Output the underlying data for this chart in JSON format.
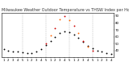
{
  "title": "Milwaukee Weather Outdoor Temperature vs THSW Index per Hour (24 Hours)",
  "title_fontsize": 3.5,
  "background_color": "#ffffff",
  "grid_color": "#999999",
  "tick_fontsize": 2.8,
  "hours": [
    1,
    2,
    3,
    4,
    5,
    6,
    7,
    8,
    9,
    10,
    11,
    12,
    13,
    14,
    15,
    16,
    17,
    18,
    19,
    20,
    21,
    22,
    23,
    24
  ],
  "temp": [
    42,
    40,
    39,
    38,
    37,
    36,
    36,
    38,
    42,
    48,
    54,
    60,
    65,
    68,
    67,
    63,
    58,
    52,
    47,
    43,
    40,
    38,
    36,
    35
  ],
  "thsw": [
    null,
    null,
    null,
    null,
    null,
    null,
    null,
    null,
    null,
    50,
    62,
    72,
    85,
    90,
    84,
    76,
    65,
    54,
    45,
    40,
    null,
    null,
    null,
    null
  ],
  "temp_color": "#000000",
  "thsw_color_main": "#ff6600",
  "thsw_color_alt": "#cc0000",
  "ylim": [
    30,
    95
  ],
  "ytick_values": [
    40,
    50,
    60,
    70,
    80,
    90
  ],
  "ytick_labels": [
    "40",
    "50",
    "60",
    "70",
    "80",
    "90"
  ],
  "marker_size": 1.8,
  "dashed_grid_positions": [
    5,
    10,
    15,
    20,
    25
  ],
  "x_tick_labels": [
    "1",
    "2",
    "3",
    "4",
    "5",
    "1",
    "2",
    "3",
    "4",
    "5",
    "1",
    "2",
    "3",
    "4",
    "5",
    "1",
    "2",
    "3",
    "4",
    "5",
    "1",
    "2",
    "3",
    "4",
    "5"
  ]
}
